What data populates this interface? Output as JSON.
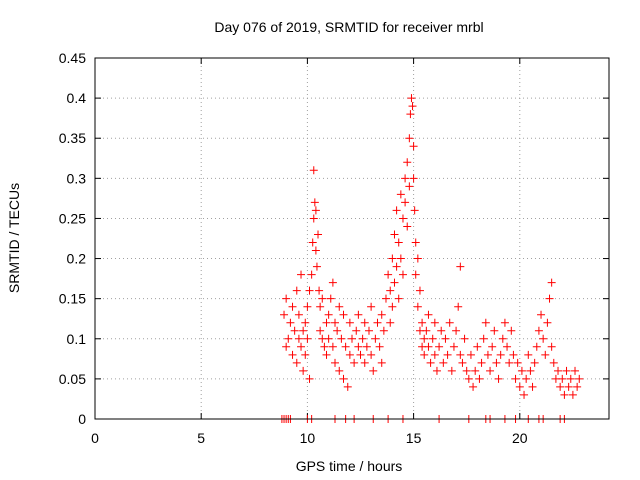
{
  "chart_data": {
    "type": "scatter",
    "title": "Day 076 of 2019, SRMTID for receiver mrbl",
    "xlabel": "GPS time / hours",
    "ylabel": "SRMTID / TECUs",
    "xlim": [
      0,
      24.2
    ],
    "ylim": [
      0,
      0.45
    ],
    "xticks": [
      0,
      5,
      10,
      15,
      20
    ],
    "yticks": [
      0,
      0.05,
      0.1,
      0.15,
      0.2,
      0.25,
      0.3,
      0.35,
      0.4,
      0.45
    ],
    "xtick_labels": [
      "0",
      "5",
      "10",
      "15",
      "20"
    ],
    "ytick_labels": [
      "0",
      "0.05",
      "0.1",
      "0.15",
      "0.2",
      "0.25",
      "0.3",
      "0.35",
      "0.4",
      "0.45"
    ],
    "grid": true,
    "marker": "+",
    "color": "#ff0000",
    "series": [
      {
        "name": "SRMTID",
        "points": [
          [
            8.8,
            0.0
          ],
          [
            8.9,
            0.0
          ],
          [
            9.0,
            0.0
          ],
          [
            9.1,
            0.0
          ],
          [
            9.2,
            0.0
          ],
          [
            10.0,
            0.0
          ],
          [
            10.2,
            0.0
          ],
          [
            11.3,
            0.0
          ],
          [
            11.8,
            0.0
          ],
          [
            12.2,
            0.0
          ],
          [
            13.1,
            0.0
          ],
          [
            13.8,
            0.0
          ],
          [
            14.5,
            0.0
          ],
          [
            16.2,
            0.0
          ],
          [
            17.6,
            0.0
          ],
          [
            18.4,
            0.0
          ],
          [
            18.6,
            0.0
          ],
          [
            19.3,
            0.0
          ],
          [
            19.8,
            0.0
          ],
          [
            20.4,
            0.0
          ],
          [
            20.9,
            0.0
          ],
          [
            21.1,
            0.0
          ],
          [
            21.9,
            0.0
          ],
          [
            22.1,
            0.0
          ],
          [
            8.9,
            0.13
          ],
          [
            9.0,
            0.15
          ],
          [
            9.0,
            0.09
          ],
          [
            9.1,
            0.1
          ],
          [
            9.2,
            0.12
          ],
          [
            9.3,
            0.14
          ],
          [
            9.3,
            0.08
          ],
          [
            9.4,
            0.11
          ],
          [
            9.5,
            0.16
          ],
          [
            9.5,
            0.07
          ],
          [
            9.6,
            0.1
          ],
          [
            9.6,
            0.13
          ],
          [
            9.7,
            0.18
          ],
          [
            9.7,
            0.09
          ],
          [
            9.8,
            0.11
          ],
          [
            9.8,
            0.06
          ],
          [
            9.9,
            0.12
          ],
          [
            9.9,
            0.08
          ],
          [
            10.0,
            0.1
          ],
          [
            10.0,
            0.14
          ],
          [
            10.1,
            0.05
          ],
          [
            10.1,
            0.16
          ],
          [
            10.2,
            0.18
          ],
          [
            10.25,
            0.22
          ],
          [
            10.3,
            0.25
          ],
          [
            10.3,
            0.31
          ],
          [
            10.35,
            0.27
          ],
          [
            10.4,
            0.26
          ],
          [
            10.4,
            0.21
          ],
          [
            10.45,
            0.19
          ],
          [
            10.5,
            0.23
          ],
          [
            10.55,
            0.16
          ],
          [
            10.6,
            0.14
          ],
          [
            10.6,
            0.11
          ],
          [
            10.7,
            0.1
          ],
          [
            10.7,
            0.15
          ],
          [
            10.8,
            0.09
          ],
          [
            10.9,
            0.12
          ],
          [
            10.9,
            0.08
          ],
          [
            11.0,
            0.1
          ],
          [
            11.0,
            0.13
          ],
          [
            11.1,
            0.15
          ],
          [
            11.2,
            0.17
          ],
          [
            11.2,
            0.09
          ],
          [
            11.3,
            0.12
          ],
          [
            11.3,
            0.07
          ],
          [
            11.4,
            0.11
          ],
          [
            11.5,
            0.06
          ],
          [
            11.5,
            0.14
          ],
          [
            11.6,
            0.1
          ],
          [
            11.7,
            0.05
          ],
          [
            11.7,
            0.13
          ],
          [
            11.8,
            0.09
          ],
          [
            11.9,
            0.04
          ],
          [
            12.0,
            0.08
          ],
          [
            12.0,
            0.12
          ],
          [
            12.1,
            0.1
          ],
          [
            12.2,
            0.07
          ],
          [
            12.3,
            0.11
          ],
          [
            12.4,
            0.09
          ],
          [
            12.4,
            0.13
          ],
          [
            12.5,
            0.08
          ],
          [
            12.6,
            0.1
          ],
          [
            12.7,
            0.07
          ],
          [
            12.7,
            0.12
          ],
          [
            12.8,
            0.09
          ],
          [
            12.9,
            0.11
          ],
          [
            13.0,
            0.08
          ],
          [
            13.0,
            0.14
          ],
          [
            13.1,
            0.06
          ],
          [
            13.2,
            0.1
          ],
          [
            13.3,
            0.12
          ],
          [
            13.4,
            0.09
          ],
          [
            13.5,
            0.13
          ],
          [
            13.5,
            0.07
          ],
          [
            13.6,
            0.11
          ],
          [
            13.7,
            0.15
          ],
          [
            13.8,
            0.18
          ],
          [
            13.9,
            0.16
          ],
          [
            13.9,
            0.12
          ],
          [
            14.0,
            0.2
          ],
          [
            14.0,
            0.14
          ],
          [
            14.1,
            0.23
          ],
          [
            14.1,
            0.17
          ],
          [
            14.2,
            0.19
          ],
          [
            14.2,
            0.26
          ],
          [
            14.3,
            0.22
          ],
          [
            14.3,
            0.15
          ],
          [
            14.4,
            0.28
          ],
          [
            14.4,
            0.2
          ],
          [
            14.5,
            0.25
          ],
          [
            14.5,
            0.18
          ],
          [
            14.6,
            0.27
          ],
          [
            14.6,
            0.3
          ],
          [
            14.7,
            0.24
          ],
          [
            14.7,
            0.32
          ],
          [
            14.8,
            0.29
          ],
          [
            14.8,
            0.35
          ],
          [
            14.85,
            0.38
          ],
          [
            14.9,
            0.4
          ],
          [
            14.95,
            0.39
          ],
          [
            15.0,
            0.34
          ],
          [
            15.0,
            0.3
          ],
          [
            15.05,
            0.26
          ],
          [
            15.1,
            0.22
          ],
          [
            15.1,
            0.18
          ],
          [
            15.2,
            0.2
          ],
          [
            15.2,
            0.14
          ],
          [
            15.3,
            0.16
          ],
          [
            15.3,
            0.11
          ],
          [
            15.4,
            0.12
          ],
          [
            15.4,
            0.09
          ],
          [
            15.5,
            0.1
          ],
          [
            15.5,
            0.08
          ],
          [
            15.6,
            0.11
          ],
          [
            15.7,
            0.09
          ],
          [
            15.7,
            0.13
          ],
          [
            15.8,
            0.07
          ],
          [
            15.9,
            0.1
          ],
          [
            16.0,
            0.08
          ],
          [
            16.0,
            0.12
          ],
          [
            16.1,
            0.06
          ],
          [
            16.2,
            0.09
          ],
          [
            16.3,
            0.11
          ],
          [
            16.4,
            0.07
          ],
          [
            16.5,
            0.1
          ],
          [
            16.6,
            0.08
          ],
          [
            16.7,
            0.12
          ],
          [
            16.8,
            0.06
          ],
          [
            16.9,
            0.09
          ],
          [
            17.0,
            0.11
          ],
          [
            17.1,
            0.14
          ],
          [
            17.2,
            0.19
          ],
          [
            17.2,
            0.08
          ],
          [
            17.3,
            0.07
          ],
          [
            17.4,
            0.1
          ],
          [
            17.5,
            0.06
          ],
          [
            17.6,
            0.05
          ],
          [
            17.7,
            0.08
          ],
          [
            17.8,
            0.04
          ],
          [
            17.9,
            0.06
          ],
          [
            18.0,
            0.09
          ],
          [
            18.1,
            0.05
          ],
          [
            18.2,
            0.07
          ],
          [
            18.3,
            0.1
          ],
          [
            18.4,
            0.12
          ],
          [
            18.5,
            0.08
          ],
          [
            18.6,
            0.06
          ],
          [
            18.7,
            0.09
          ],
          [
            18.8,
            0.11
          ],
          [
            18.9,
            0.07
          ],
          [
            19.0,
            0.05
          ],
          [
            19.1,
            0.08
          ],
          [
            19.2,
            0.1
          ],
          [
            19.3,
            0.12
          ],
          [
            19.4,
            0.09
          ],
          [
            19.5,
            0.07
          ],
          [
            19.6,
            0.11
          ],
          [
            19.7,
            0.08
          ],
          [
            19.8,
            0.05
          ],
          [
            19.9,
            0.07
          ],
          [
            20.0,
            0.04
          ],
          [
            20.1,
            0.06
          ],
          [
            20.2,
            0.03
          ],
          [
            20.3,
            0.05
          ],
          [
            20.4,
            0.08
          ],
          [
            20.5,
            0.06
          ],
          [
            20.6,
            0.04
          ],
          [
            20.7,
            0.07
          ],
          [
            20.8,
            0.09
          ],
          [
            20.9,
            0.11
          ],
          [
            21.0,
            0.13
          ],
          [
            21.1,
            0.1
          ],
          [
            21.2,
            0.08
          ],
          [
            21.3,
            0.12
          ],
          [
            21.4,
            0.15
          ],
          [
            21.5,
            0.17
          ],
          [
            21.5,
            0.09
          ],
          [
            21.6,
            0.07
          ],
          [
            21.7,
            0.05
          ],
          [
            21.8,
            0.06
          ],
          [
            21.9,
            0.04
          ],
          [
            22.0,
            0.05
          ],
          [
            22.1,
            0.03
          ],
          [
            22.2,
            0.06
          ],
          [
            22.3,
            0.04
          ],
          [
            22.4,
            0.05
          ],
          [
            22.5,
            0.03
          ],
          [
            22.6,
            0.06
          ],
          [
            22.7,
            0.04
          ],
          [
            22.8,
            0.05
          ]
        ]
      }
    ]
  }
}
